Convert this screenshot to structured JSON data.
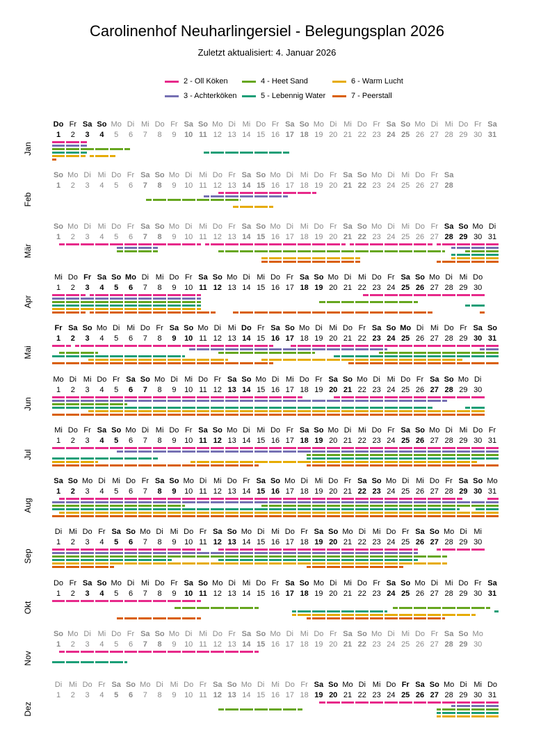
{
  "title": "Carolinenhof Neuharlingersiel - Belegungsplan 2026",
  "subtitle": "Zuletzt aktualisiert:  4. Januar 2026",
  "chart_data": {
    "type": "timeline",
    "title": "Carolinenhof Neuharlingersiel - Belegungsplan 2026",
    "legend_position": "top",
    "weekday_names": [
      "Mo",
      "Di",
      "Mi",
      "Do",
      "Fr",
      "Sa",
      "So"
    ],
    "rooms": [
      {
        "name": "2 - Oll Köken",
        "color": "#e7298a"
      },
      {
        "name": "3 - Achterköken",
        "color": "#7570b3"
      },
      {
        "name": "4 - Heet Sand",
        "color": "#66a61e"
      },
      {
        "name": "5 - Lebennig Water",
        "color": "#1b9e77"
      },
      {
        "name": "6 - Warm Lucht",
        "color": "#e6ab02"
      },
      {
        "name": "7 - Peerstall",
        "color": "#d95f02"
      }
    ],
    "months": [
      {
        "label": "Jan",
        "days": 31,
        "first_weekday": 3,
        "holidays": [
          1
        ],
        "highlighted": [
          1,
          4
        ],
        "bookings": [
          [
            [
              1,
              3.5
            ]
          ],
          [
            [
              1,
              3.5
            ]
          ],
          [
            [
              1,
              6.5
            ]
          ],
          [
            [
              1,
              3.5
            ],
            [
              11.5,
              17.5
            ]
          ],
          [
            [
              1,
              3.4
            ],
            [
              3.6,
              5.5
            ]
          ],
          [
            [
              1,
              1.4
            ]
          ]
        ]
      },
      {
        "label": "Feb",
        "days": 28,
        "first_weekday": 6,
        "holidays": [],
        "highlighted": [],
        "bookings": [
          [
            [
              12.5,
              19.4
            ]
          ],
          [
            [
              11.5,
              17.4
            ]
          ],
          [
            [
              7.5,
              14.1
            ]
          ],
          [],
          [
            [
              13.5,
              16.4
            ]
          ],
          []
        ]
      },
      {
        "label": "Mär",
        "days": 31,
        "first_weekday": 6,
        "holidays": [],
        "highlighted": [
          28,
          31
        ],
        "bookings": [
          [
            [
              1.5,
              11.4
            ],
            [
              11.6,
              21.4
            ],
            [
              21.6,
              27.4
            ],
            [
              27.6,
              32
            ]
          ],
          [
            [
              5.5,
              8.4
            ],
            [
              28.6,
              32
            ]
          ],
          [
            [
              5.5,
              8.4
            ],
            [
              12.5,
              28.3
            ],
            [
              29.6,
              32
            ]
          ],
          [
            [
              28.6,
              32
            ]
          ],
          [
            [
              15.5,
              22.4
            ],
            [
              28.6,
              32
            ]
          ],
          [
            [
              15.5,
              22.4
            ],
            [
              27.6,
              32
            ]
          ]
        ]
      },
      {
        "label": "Apr",
        "days": 30,
        "first_weekday": 2,
        "holidays": [
          3,
          6
        ],
        "highlighted": [
          1,
          30
        ],
        "bookings": [
          [
            [
              1,
              3.4
            ],
            [
              3.6,
              11.4
            ],
            [
              22.5,
              31
            ]
          ],
          [
            [
              1,
              11.4
            ]
          ],
          [
            [
              1,
              11.4
            ],
            [
              19.5,
              26.4
            ]
          ],
          [
            [
              1,
              11.4
            ],
            [
              29.6,
              31
            ]
          ],
          [
            [
              1,
              11.4
            ]
          ],
          [
            [
              1,
              3.4
            ],
            [
              3.6,
              12.4
            ],
            [
              13.5,
              27.4
            ],
            [
              30.6,
              31
            ]
          ]
        ]
      },
      {
        "label": "Mai",
        "days": 31,
        "first_weekday": 4,
        "holidays": [
          1,
          14,
          25
        ],
        "highlighted": [
          1,
          31
        ],
        "bookings": [
          [
            [
              1,
              2.4
            ],
            [
              2.6,
              16.4
            ],
            [
              17.5,
              32
            ]
          ],
          [
            [
              10.5,
              24.3
            ],
            [
              30.6,
              32
            ]
          ],
          [
            [
              1.5,
              4.3
            ],
            [
              12.5,
              19.3
            ],
            [
              23.6,
              32
            ]
          ],
          [
            [
              1,
              10.3
            ],
            [
              20.5,
              32
            ]
          ],
          [
            [
              3.5,
              13.3
            ],
            [
              15.5,
              29.5
            ]
          ],
          [
            [
              1,
              16.4
            ],
            [
              21.5,
              32
            ]
          ]
        ]
      },
      {
        "label": "Jun",
        "days": 30,
        "first_weekday": 0,
        "holidays": [],
        "highlighted": [
          1,
          30
        ],
        "bookings": [
          [
            [
              1,
              18.4
            ],
            [
              20.5,
              31
            ]
          ],
          [
            [
              1,
              28.4
            ]
          ],
          [
            [
              1,
              6.3
            ]
          ],
          [
            [
              1,
              27.4
            ],
            [
              29.6,
              31
            ]
          ],
          [
            [
              3.5,
              31
            ]
          ],
          [
            [
              1,
              31
            ]
          ]
        ]
      },
      {
        "label": "Jul",
        "days": 31,
        "first_weekday": 2,
        "holidays": [],
        "highlighted": [
          1,
          31
        ],
        "bookings": [
          [
            [
              1,
              32
            ]
          ],
          [
            [
              5.5,
              32
            ]
          ],
          [
            [
              18.6,
              32
            ]
          ],
          [
            [
              1,
              8.4
            ],
            [
              18.6,
              32
            ]
          ],
          [
            [
              1,
              4.3
            ],
            [
              10.6,
              30.5
            ]
          ],
          [
            [
              1,
              15.4
            ],
            [
              18.6,
              32
            ]
          ]
        ]
      },
      {
        "label": "Aug",
        "days": 31,
        "first_weekday": 5,
        "holidays": [],
        "highlighted": [
          1,
          31
        ],
        "bookings": [
          [
            [
              1.5,
              29.5
            ],
            [
              31.1,
              32
            ]
          ],
          [
            [
              1,
              32
            ]
          ],
          [
            [
              1,
              10.3
            ],
            [
              15.5,
              32
            ]
          ],
          [
            [
              1,
              29.3
            ],
            [
              30.3,
              32
            ]
          ],
          [
            [
              1.5,
              32
            ]
          ],
          [
            [
              1,
              32
            ]
          ]
        ]
      },
      {
        "label": "Sep",
        "days": 30,
        "first_weekday": 1,
        "holidays": [],
        "highlighted": [
          1,
          30
        ],
        "bookings": [
          [
            [
              1,
              11.4
            ],
            [
              12.5,
              26.4
            ],
            [
              27.6,
              31
            ]
          ],
          [
            [
              1,
              26.4
            ]
          ],
          [
            [
              1,
              28.4
            ]
          ],
          [
            [
              1,
              9.4
            ],
            [
              12.5,
              26.4
            ]
          ],
          [
            [
              1,
              28.4
            ]
          ],
          [
            [
              1,
              5.4
            ],
            [
              18.6,
              25.4
            ]
          ]
        ]
      },
      {
        "label": "Okt",
        "days": 31,
        "first_weekday": 3,
        "holidays": [
          3
        ],
        "highlighted": [
          1,
          31
        ],
        "bookings": [
          [
            [
              1,
              11.4
            ]
          ],
          [],
          [
            [
              9.5,
              15.4
            ],
            [
              24.6,
              31.4
            ]
          ],
          [
            [
              17.6,
              24.3
            ],
            [
              31.6,
              32
            ]
          ],
          [
            [
              17.6,
              30.4
            ]
          ],
          [
            [
              5.5,
              11.4
            ],
            [
              18.6,
              28.3
            ]
          ]
        ]
      },
      {
        "label": "Nov",
        "days": 30,
        "first_weekday": 6,
        "holidays": [],
        "highlighted": [],
        "bookings": [
          [
            [
              1.5,
              15.4
            ]
          ],
          [],
          [],
          [
            [
              1,
              6.3
            ]
          ],
          [],
          []
        ]
      },
      {
        "label": "Dez",
        "days": 31,
        "first_weekday": 1,
        "holidays": [
          25,
          26
        ],
        "highlighted": [
          19,
          31
        ],
        "bookings": [
          [
            [
              19.5,
              32
            ]
          ],
          [
            [
              28.6,
              32
            ]
          ],
          [
            [
              12.5,
              18.4
            ],
            [
              27.6,
              32
            ]
          ],
          [
            [
              27.6,
              32
            ]
          ],
          [
            [
              27.6,
              32
            ]
          ],
          []
        ]
      }
    ]
  }
}
